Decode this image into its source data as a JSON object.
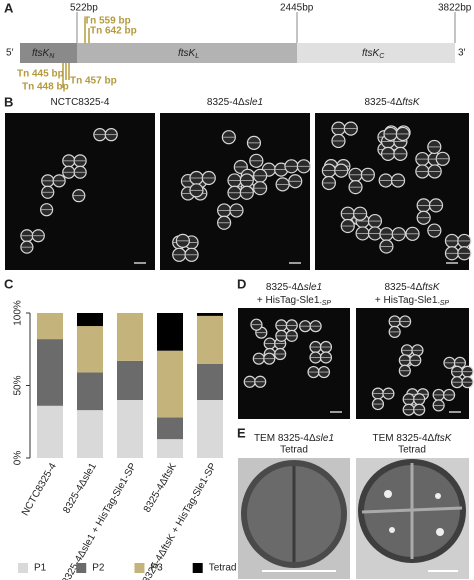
{
  "panel_a": {
    "label": "A",
    "positions": [
      "522bp",
      "2445bp",
      "3822bp"
    ],
    "five_prime": "5′",
    "three_prime": "3′",
    "segments": [
      {
        "gene": "ftsK",
        "sub": "N"
      },
      {
        "gene": "ftsK",
        "sub": "L"
      },
      {
        "gene": "ftsK",
        "sub": "C"
      }
    ],
    "transposons_top": [
      "Tn 559 bp",
      "Tn 642 bp"
    ],
    "transposons_bottom": [
      "Tn 445 bp",
      "Tn 448 bp",
      "Tn 457 bp"
    ]
  },
  "panel_b": {
    "label": "B",
    "strains": [
      {
        "prefix": "NCTC8325-4"
      },
      {
        "prefix": "8325-4Δ",
        "gene": "sle1"
      },
      {
        "prefix": "8325-4Δ",
        "gene": "ftsK"
      }
    ]
  },
  "panel_c": {
    "label": "C"
  },
  "chart_data": {
    "type": "stacked_bar",
    "categories": [
      "NCTC8325-4",
      "8325-4Δsle1",
      "8325-4Δsle1 + HisTag-Sle1-SP",
      "8325-4ΔftsK",
      "8325-4ΔftsK + HisTag-Sle1-SP"
    ],
    "series": [
      {
        "name": "P1",
        "color": "#d9d9d9",
        "values": [
          36,
          33,
          40,
          13,
          40
        ]
      },
      {
        "name": "P2",
        "color": "#6b6b6b",
        "values": [
          46,
          26,
          27,
          15,
          25
        ]
      },
      {
        "name": "P3",
        "color": "#c4b47c",
        "values": [
          18,
          32,
          33,
          46,
          33
        ]
      },
      {
        "name": "Tetrad",
        "color": "#000000",
        "values": [
          0,
          9,
          0,
          26,
          2
        ]
      }
    ],
    "ylim": [
      0,
      100
    ],
    "yticks": [
      {
        "value": 0,
        "label": "0%"
      },
      {
        "value": 50,
        "label": "50%"
      },
      {
        "value": 100,
        "label": "100%"
      }
    ],
    "legend": "bottom"
  },
  "panel_d": {
    "label": "D",
    "strains": [
      {
        "prefix": "8325-4Δ",
        "gene": "sle1",
        "line2": "+ HisTag-Sle1",
        "sub": "-SP"
      },
      {
        "prefix": "8325-4Δ",
        "gene": "ftsK",
        "line2": "+ HisTag-Sle1",
        "sub": "-SP"
      }
    ]
  },
  "panel_e": {
    "label": "E",
    "images": [
      {
        "prefix": "TEM 8325-4Δ",
        "gene": "sle1",
        "line2": "Tetrad"
      },
      {
        "prefix": "TEM 8325-4Δ",
        "gene": "ftsK",
        "line2": "Tetrad"
      }
    ]
  }
}
